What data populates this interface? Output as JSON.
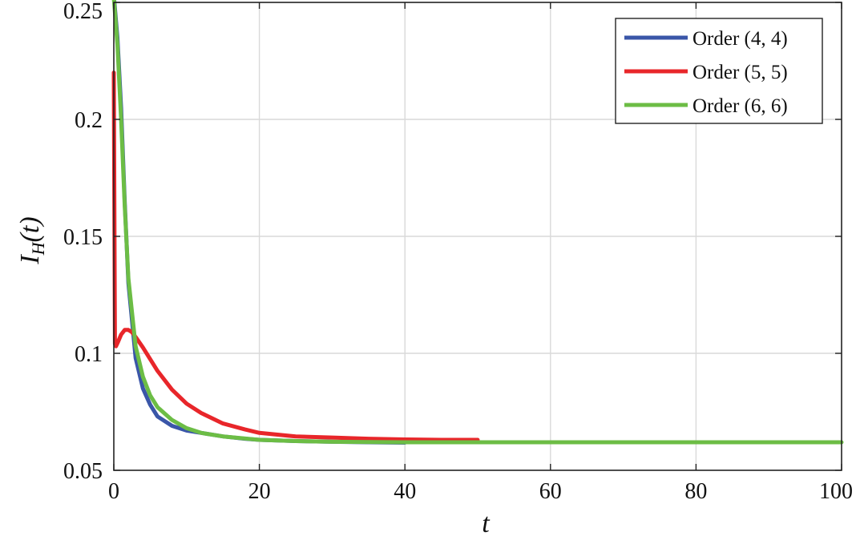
{
  "chart_data": {
    "type": "line",
    "title": "",
    "xlabel": "t",
    "ylabel": "I_H(t)",
    "ylabel_main": "I",
    "ylabel_sub": "H",
    "ylabel_arg": "(t)",
    "xlim": [
      0,
      100
    ],
    "ylim": [
      0.05,
      0.25
    ],
    "x_ticks": [
      0,
      20,
      40,
      60,
      80,
      100
    ],
    "x_tick_labels": [
      "0",
      "20",
      "40",
      "60",
      "80",
      "100"
    ],
    "y_ticks": [
      0.05,
      0.1,
      0.15,
      0.2,
      0.25
    ],
    "y_tick_labels": [
      "0.05",
      "0.1",
      "0.15",
      "0.2",
      "0.25"
    ],
    "grid": true,
    "legend_position": "top-right",
    "series": [
      {
        "name": "Order (4, 4)",
        "color": "#3a56a8",
        "x": [
          0,
          0.5,
          1,
          1.5,
          2,
          3,
          4,
          5,
          6,
          8,
          10,
          12,
          15,
          18,
          20,
          25,
          30,
          35,
          40
        ],
        "y": [
          0.253,
          0.235,
          0.205,
          0.165,
          0.13,
          0.098,
          0.085,
          0.078,
          0.073,
          0.069,
          0.067,
          0.066,
          0.0645,
          0.0635,
          0.063,
          0.0625,
          0.0622,
          0.062,
          0.0618
        ]
      },
      {
        "name": "Order (5, 5)",
        "color": "#e8262a",
        "x": [
          0,
          0.15,
          0.3,
          0.6,
          1,
          1.5,
          2,
          2.5,
          3,
          4,
          5,
          6,
          8,
          10,
          12,
          15,
          18,
          20,
          25,
          30,
          35,
          40,
          45,
          50
        ],
        "y": [
          0.22,
          0.104,
          0.103,
          0.105,
          0.108,
          0.11,
          0.11,
          0.109,
          0.107,
          0.1025,
          0.0975,
          0.0925,
          0.0845,
          0.0785,
          0.0745,
          0.07,
          0.0675,
          0.066,
          0.0645,
          0.064,
          0.0635,
          0.0632,
          0.063,
          0.063
        ]
      },
      {
        "name": "Order (6, 6)",
        "color": "#6cbd45",
        "x": [
          0,
          0.5,
          1,
          1.5,
          2,
          3,
          4,
          5,
          6,
          8,
          10,
          12,
          15,
          20,
          25,
          30,
          40,
          50,
          60,
          70,
          80,
          90,
          100
        ],
        "y": [
          0.252,
          0.232,
          0.2,
          0.163,
          0.132,
          0.103,
          0.09,
          0.082,
          0.077,
          0.0715,
          0.068,
          0.066,
          0.0645,
          0.063,
          0.0625,
          0.0622,
          0.062,
          0.062,
          0.062,
          0.062,
          0.062,
          0.062,
          0.062
        ]
      }
    ]
  }
}
